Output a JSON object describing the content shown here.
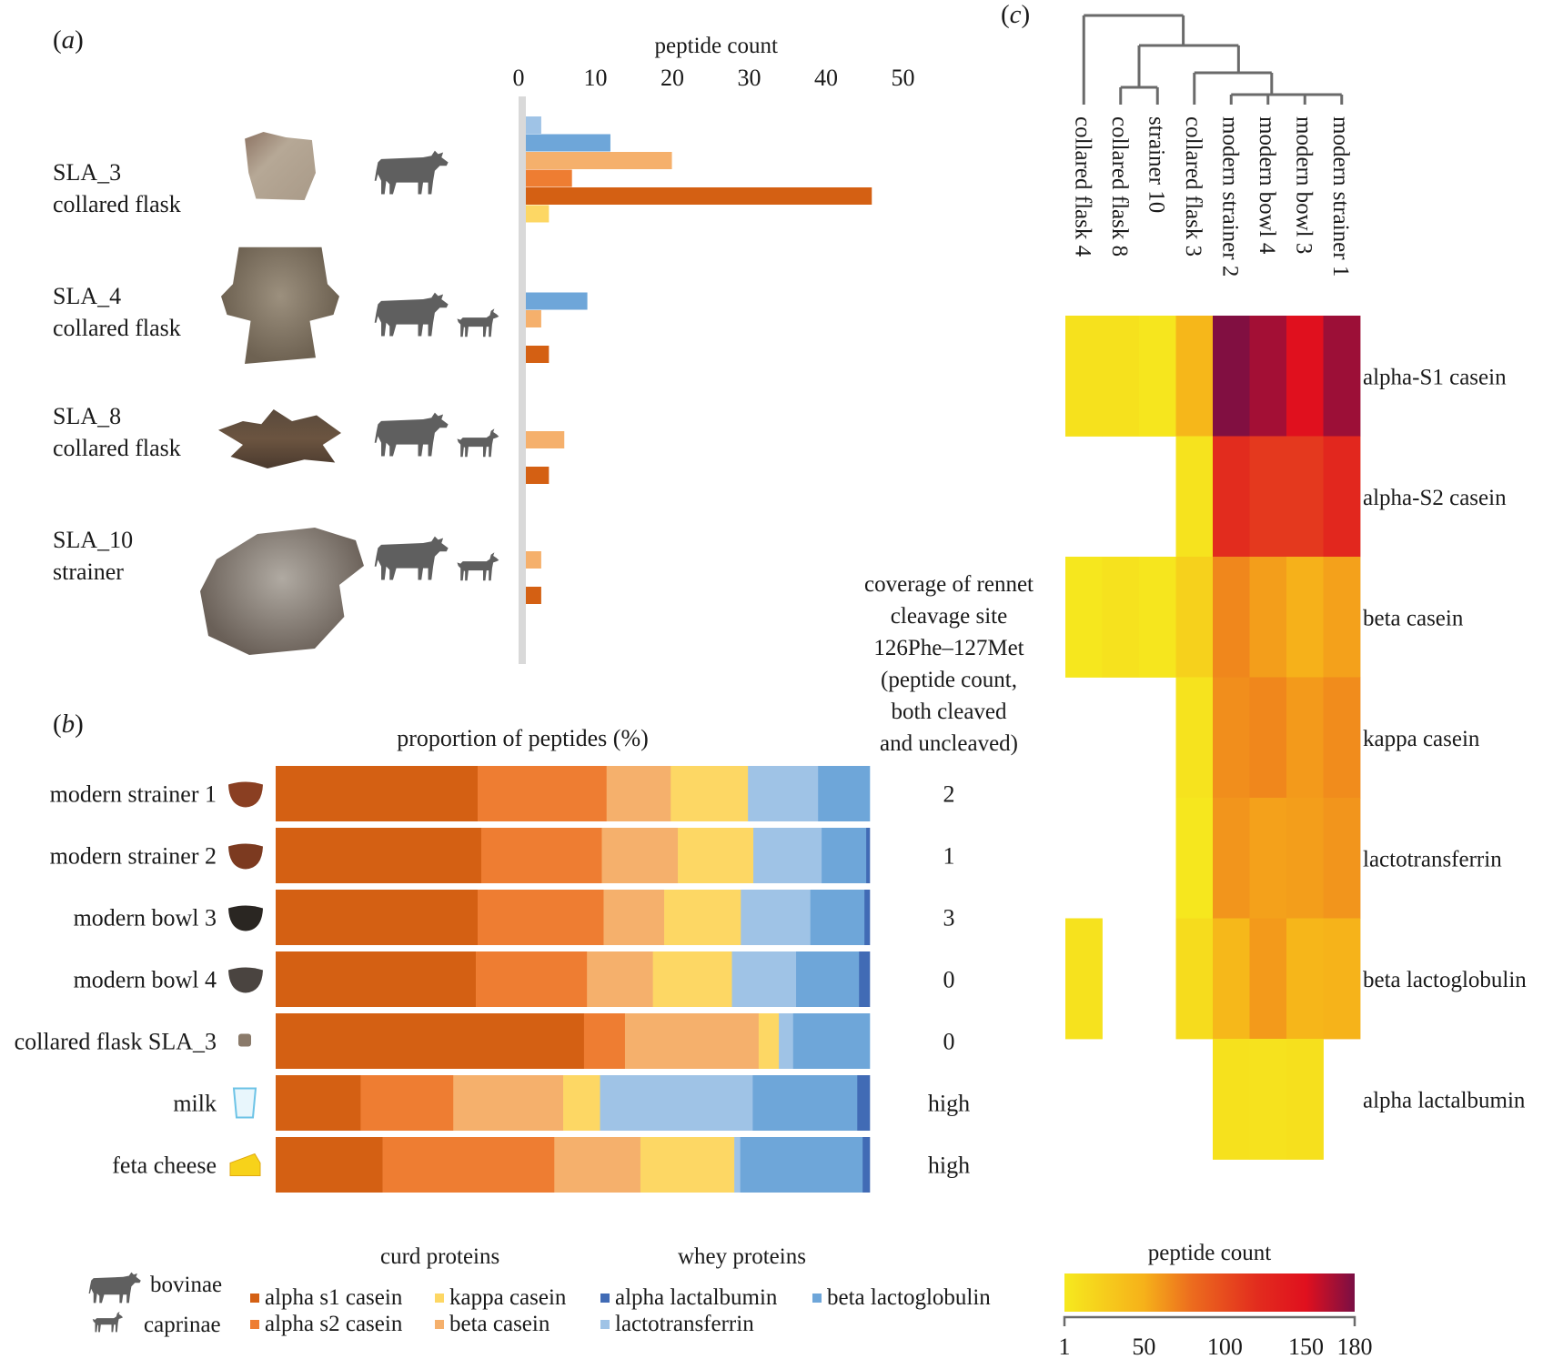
{
  "figure": {
    "panel_a_label": "a",
    "panel_b_label": "b",
    "panel_c_label": "c"
  },
  "colors": {
    "alpha_s1_casein": "#d46013",
    "alpha_s2_casein": "#ee7d32",
    "beta_casein": "#f5b06c",
    "kappa_casein": "#fdd764",
    "lactotransferrin": "#9fc3e6",
    "beta_lactoglobulin": "#6ea6d9",
    "alpha_lactalbumin": "#416bb5",
    "axis_gray": "#d9d9d9",
    "animal_gray": "#5f5f5f"
  },
  "panel_a": {
    "samples": [
      {
        "id": "SLA_3",
        "type": "collared flask",
        "species": [
          "bovinae"
        ]
      },
      {
        "id": "SLA_4",
        "type": "collared flask",
        "species": [
          "bovinae",
          "caprinae"
        ]
      },
      {
        "id": "SLA_8",
        "type": "collared flask",
        "species": [
          "bovinae",
          "caprinae"
        ]
      },
      {
        "id": "SLA_10",
        "type": "strainer",
        "species": [
          "bovinae",
          "caprinae"
        ]
      }
    ]
  },
  "panel_b": {
    "rennet_title_lines": [
      "coverage of rennet",
      "cleavage site",
      "126Phe–127Met",
      "(peptide count,",
      "both cleaved",
      "and uncleaved)"
    ],
    "rows": [
      {
        "label": "modern strainer 1",
        "icon": "clay-bowl-icon",
        "rennet": "2"
      },
      {
        "label": "modern strainer 2",
        "icon": "clay-bowl-icon",
        "rennet": "1"
      },
      {
        "label": "modern bowl 3",
        "icon": "black-bowl-icon",
        "rennet": "3"
      },
      {
        "label": "modern bowl 4",
        "icon": "black-bowl-icon",
        "rennet": "0"
      },
      {
        "label": "collared flask SLA_3",
        "icon": "sherd-icon",
        "rennet": "0"
      },
      {
        "label": "milk",
        "icon": "milk-glass-icon",
        "rennet": "high"
      },
      {
        "label": "feta cheese",
        "icon": "cheese-icon",
        "rennet": "high"
      }
    ]
  },
  "legend": {
    "species": [
      {
        "label": "bovinae",
        "icon": "cow-icon"
      },
      {
        "label": "caprinae",
        "icon": "goat-icon"
      }
    ],
    "curd_title": "curd proteins",
    "whey_title": "whey proteins",
    "curd_items": [
      {
        "key": "alpha_s1_casein",
        "label": "alpha s1 casein"
      },
      {
        "key": "kappa_casein",
        "label": "kappa casein"
      },
      {
        "key": "alpha_s2_casein",
        "label": "alpha s2 casein"
      },
      {
        "key": "beta_casein",
        "label": "beta casein"
      }
    ],
    "whey_items": [
      {
        "key": "alpha_lactalbumin",
        "label": "alpha lactalbumin"
      },
      {
        "key": "beta_lactoglobulin",
        "label": "beta lactoglobulin"
      },
      {
        "key": "lactotransferrin",
        "label": "lactotransferrin"
      }
    ]
  },
  "chart_data": [
    {
      "id": "a",
      "type": "bar",
      "orientation": "horizontal",
      "title": "peptide count",
      "xlabel": "peptide count",
      "xlim": [
        0,
        50
      ],
      "xticks": [
        0,
        10,
        20,
        30,
        40,
        50
      ],
      "grid": false,
      "categories": [
        "SLA_3 collared flask",
        "SLA_4 collared flask",
        "SLA_8 collared flask",
        "SLA_10 strainer"
      ],
      "series_order_top_to_bottom": [
        "lactotransferrin",
        "beta_lactoglobulin",
        "beta_casein",
        "alpha_s2_casein",
        "alpha_s1_casein",
        "kappa_casein"
      ],
      "series": [
        {
          "name": "lactotransferrin",
          "values": [
            2,
            0,
            0,
            0
          ]
        },
        {
          "name": "beta lactoglobulin",
          "values": [
            11,
            8,
            0,
            0
          ]
        },
        {
          "name": "beta casein",
          "values": [
            19,
            2,
            5,
            2
          ]
        },
        {
          "name": "alpha s2 casein",
          "values": [
            6,
            0,
            0,
            0
          ]
        },
        {
          "name": "alpha s1 casein",
          "values": [
            45,
            3,
            3,
            2
          ]
        },
        {
          "name": "kappa casein",
          "values": [
            3,
            0,
            0,
            0
          ]
        }
      ]
    },
    {
      "id": "b",
      "type": "bar",
      "orientation": "horizontal",
      "stacked": true,
      "title": "proportion of peptides (%)",
      "xlim": [
        0,
        100
      ],
      "categories": [
        "modern strainer 1",
        "modern strainer 2",
        "modern bowl 3",
        "modern bowl 4",
        "collared flask SLA_3",
        "milk",
        "feta cheese"
      ],
      "series": [
        {
          "name": "alpha s1 casein",
          "values": [
            34.0,
            34.6,
            34.0,
            33.7,
            51.9,
            14.3,
            18.0
          ]
        },
        {
          "name": "alpha s2 casein",
          "values": [
            21.7,
            20.3,
            21.2,
            18.7,
            6.9,
            15.6,
            28.9
          ]
        },
        {
          "name": "beta casein",
          "values": [
            10.8,
            12.8,
            10.2,
            11.1,
            22.5,
            18.5,
            14.5
          ]
        },
        {
          "name": "kappa casein",
          "values": [
            13.0,
            12.7,
            12.9,
            13.3,
            3.4,
            6.2,
            15.8
          ]
        },
        {
          "name": "lactotransferrin",
          "values": [
            11.8,
            11.5,
            11.7,
            10.8,
            2.4,
            25.7,
            1.0
          ]
        },
        {
          "name": "beta lactoglobulin",
          "values": [
            8.7,
            7.5,
            9.1,
            10.6,
            12.9,
            17.6,
            20.6
          ]
        },
        {
          "name": "alpha lactalbumin",
          "values": [
            0.0,
            0.6,
            0.9,
            1.8,
            0.0,
            2.1,
            1.2
          ]
        }
      ],
      "side_annotation": {
        "title": "coverage of rennet cleavage site 126Phe–127Met (peptide count, both cleaved and uncleaved)",
        "values": [
          "2",
          "1",
          "3",
          "0",
          "0",
          "high",
          "high"
        ]
      }
    },
    {
      "id": "c",
      "type": "heatmap",
      "title": "peptide count",
      "columns": [
        "collared flask 4",
        "collared flask 8",
        "strainer 10",
        "collared flask 3",
        "modern strainer 2",
        "modern bowl 4",
        "modern bowl 3",
        "modern strainer 1"
      ],
      "rows": [
        "alpha-S1 casein",
        "alpha-S2 casein",
        "beta casein",
        "kappa casein",
        "lactotransferrin",
        "beta lactoglobulin",
        "alpha lactalbumin"
      ],
      "values": [
        [
          8,
          8,
          4,
          45,
          178,
          168,
          150,
          170
        ],
        [
          null,
          null,
          null,
          6,
          120,
          112,
          112,
          125
        ],
        [
          3,
          7,
          4,
          22,
          68,
          58,
          50,
          57
        ],
        [
          null,
          null,
          null,
          6,
          65,
          68,
          60,
          66
        ],
        [
          null,
          null,
          null,
          3,
          62,
          57,
          58,
          62
        ],
        [
          7,
          null,
          null,
          12,
          44,
          60,
          46,
          48
        ],
        [
          null,
          null,
          null,
          null,
          8,
          7,
          9,
          null
        ]
      ],
      "colorbar": {
        "label": "peptide count",
        "range": [
          1,
          180
        ],
        "ticks": [
          1,
          50,
          100,
          150,
          180
        ],
        "colors": [
          "#f6e91e",
          "#f6b11a",
          "#ec6b1e",
          "#e0201e",
          "#e3101e",
          "#7a0f44"
        ]
      },
      "dendrogram": {
        "leaf_order": [
          "collared flask 4",
          "collared flask 8",
          "strainer 10",
          "collared flask 3",
          "modern strainer 2",
          "modern bowl 4",
          "modern bowl 3",
          "modern strainer 1"
        ]
      }
    }
  ]
}
